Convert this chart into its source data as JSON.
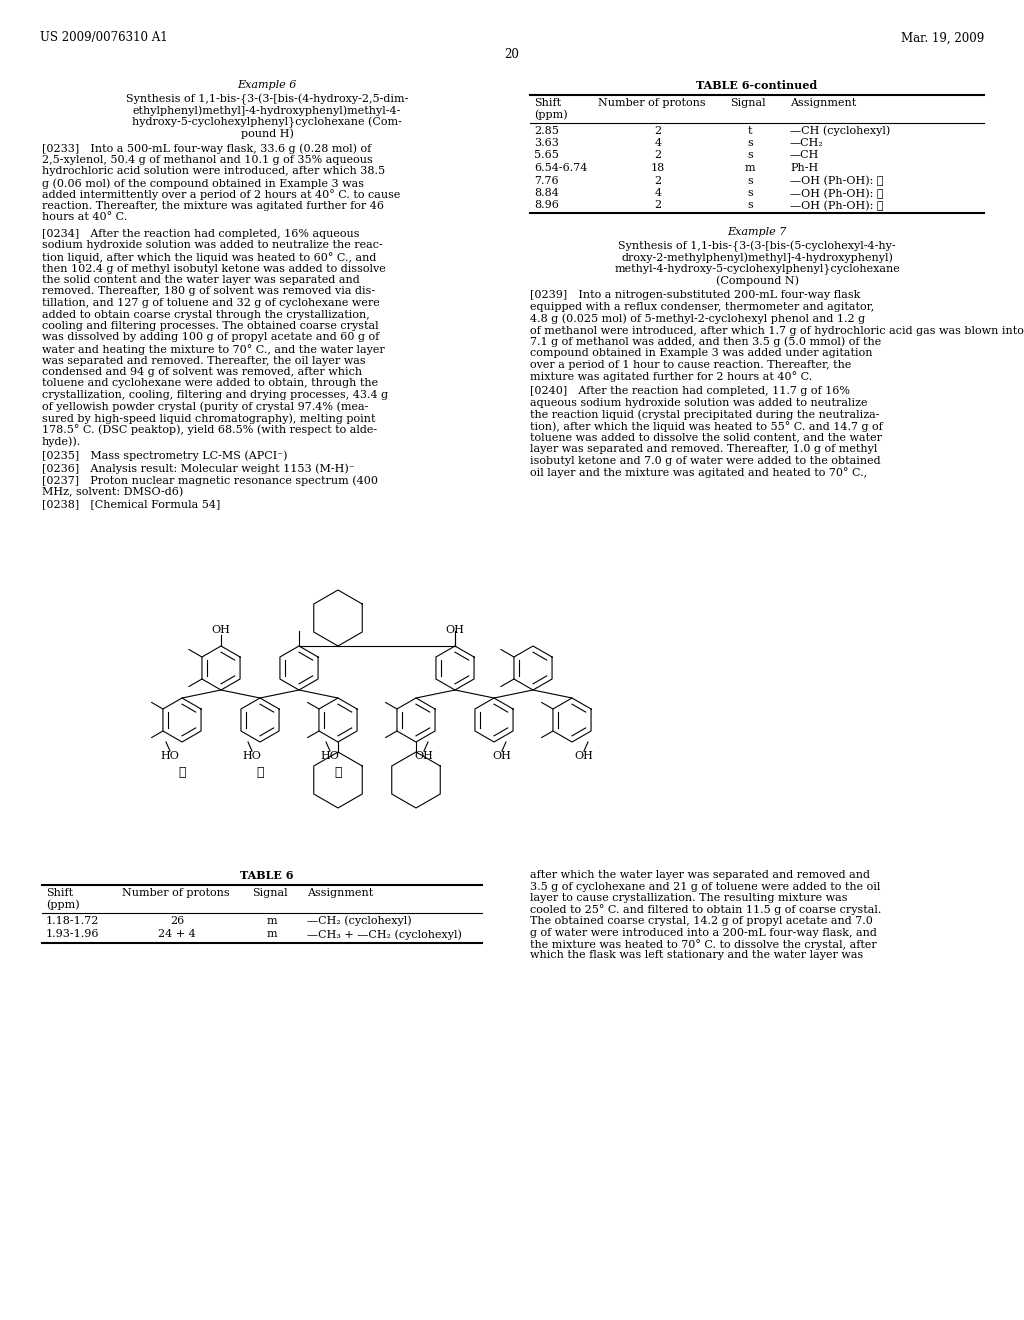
{
  "bg_color": "#ffffff",
  "header_left": "US 2009/0076310 A1",
  "header_right": "Mar. 19, 2009",
  "page_number": "20",
  "example6_title": "Example 6",
  "example6_subtitle_lines": [
    "Synthesis of 1,1-bis-{3-(3-[bis-(4-hydroxy-2,5-dim-",
    "ethylphenyl)methyl]-4-hydroxyphenyl)methyl-4-",
    "hydroxy-5-cyclohexylphenyl}cyclohexane (Com-",
    "pound H)"
  ],
  "p0233_lines": [
    "[0233] Into a 500-mL four-way flask, 33.6 g (0.28 mol) of",
    "2,5-xylenol, 50.4 g of methanol and 10.1 g of 35% aqueous",
    "hydrochloric acid solution were introduced, after which 38.5",
    "g (0.06 mol) of the compound obtained in Example 3 was",
    "added intermittently over a period of 2 hours at 40° C. to cause",
    "reaction. Thereafter, the mixture was agitated further for 46",
    "hours at 40° C."
  ],
  "p0234_lines": [
    "[0234] After the reaction had completed, 16% aqueous",
    "sodium hydroxide solution was added to neutralize the reac-",
    "tion liquid, after which the liquid was heated to 60° C., and",
    "then 102.4 g of methyl isobutyl ketone was added to dissolve",
    "the solid content and the water layer was separated and",
    "removed. Thereafter, 180 g of solvent was removed via dis-",
    "tillation, and 127 g of toluene and 32 g of cyclohexane were",
    "added to obtain coarse crystal through the crystallization,",
    "cooling and filtering processes. The obtained coarse crystal",
    "was dissolved by adding 100 g of propyl acetate and 60 g of",
    "water and heating the mixture to 70° C., and the water layer",
    "was separated and removed. Thereafter, the oil layer was",
    "condensed and 94 g of solvent was removed, after which",
    "toluene and cyclohexane were added to obtain, through the",
    "crystallization, cooling, filtering and drying processes, 43.4 g",
    "of yellowish powder crystal (purity of crystal 97.4% (mea-",
    "sured by high-speed liquid chromatography), melting point",
    "178.5° C. (DSC peaktop), yield 68.5% (with respect to alde-",
    "hyde))."
  ],
  "p0235": "[0235] Mass spectrometry LC-MS (APCI⁻)",
  "p0236": "[0236] Analysis result: Molecular weight 1153 (M-H)⁻",
  "p0237_lines": [
    "[0237] Proton nuclear magnetic resonance spectrum (400",
    "MHz, solvent: DMSO-d6)"
  ],
  "p0238": "[0238] [Chemical Formula 54]",
  "table6cont_title": "TABLE 6-continued",
  "table6cont_rows": [
    [
      "2.85",
      "2",
      "t",
      "—CH (cyclohexyl)"
    ],
    [
      "3.63",
      "4",
      "s",
      "—CH₂"
    ],
    [
      "5.65",
      "2",
      "s",
      "—CH"
    ],
    [
      "6.54-6.74",
      "18",
      "m",
      "Ph-H"
    ],
    [
      "7.76",
      "2",
      "s",
      "—OH (Ph-OH): ③"
    ],
    [
      "8.84",
      "4",
      "s",
      "—OH (Ph-OH): ①"
    ],
    [
      "8.96",
      "2",
      "s",
      "—OH (Ph-OH): ②"
    ]
  ],
  "example7_title": "Example 7",
  "example7_subtitle_lines": [
    "Synthesis of 1,1-bis-{3-(3-[bis-(5-cyclohexyl-4-hy-",
    "droxy-2-methylphenyl)methyl]-4-hydroxyphenyl)",
    "methyl-4-hydroxy-5-cyclohexylphenyl}cyclohexane",
    "(Compound N)"
  ],
  "p0239_lines": [
    "[0239] Into a nitrogen-substituted 200-mL four-way flask",
    "equipped with a reflux condenser, thermometer and agitator,",
    "4.8 g (0.025 mol) of 5-methyl-2-cyclohexyl phenol and 1.2 g",
    "of methanol were introduced, after which 1.7 g of hydrochloric acid gas was blown into the mixture at 30° C. Thereafter,",
    "7.1 g of methanol was added, and then 3.5 g (5.0 mmol) of the",
    "compound obtained in Example 3 was added under agitation",
    "over a period of 1 hour to cause reaction. Thereafter, the",
    "mixture was agitated further for 2 hours at 40° C."
  ],
  "p0240_lines": [
    "[0240] After the reaction had completed, 11.7 g of 16%",
    "aqueous sodium hydroxide solution was added to neutralize",
    "the reaction liquid (crystal precipitated during the neutraliza-",
    "tion), after which the liquid was heated to 55° C. and 14.7 g of",
    "toluene was added to dissolve the solid content, and the water",
    "layer was separated and removed. Thereafter, 1.0 g of methyl",
    "isobutyl ketone and 7.0 g of water were added to the obtained",
    "oil layer and the mixture was agitated and heated to 70° C.,"
  ],
  "table6_title": "TABLE 6",
  "table6_rows": [
    [
      "1.18-1.72",
      "26",
      "m",
      "—CH₂ (cyclohexyl)"
    ],
    [
      "1.93-1.96",
      "24 + 4",
      "m",
      "—CH₃ + —CH₂ (cyclohexyl)"
    ]
  ],
  "right_bottom_lines": [
    "after which the water layer was separated and removed and",
    "3.5 g of cyclohexane and 21 g of toluene were added to the oil",
    "layer to cause crystallization. The resulting mixture was",
    "cooled to 25° C. and filtered to obtain 11.5 g of coarse crystal.",
    "The obtained coarse crystal, 14.2 g of propyl acetate and 7.0",
    "g of water were introduced into a 200-mL four-way flask, and",
    "the mixture was heated to 70° C. to dissolve the crystal, after",
    "which the flask was left stationary and the water layer was"
  ]
}
